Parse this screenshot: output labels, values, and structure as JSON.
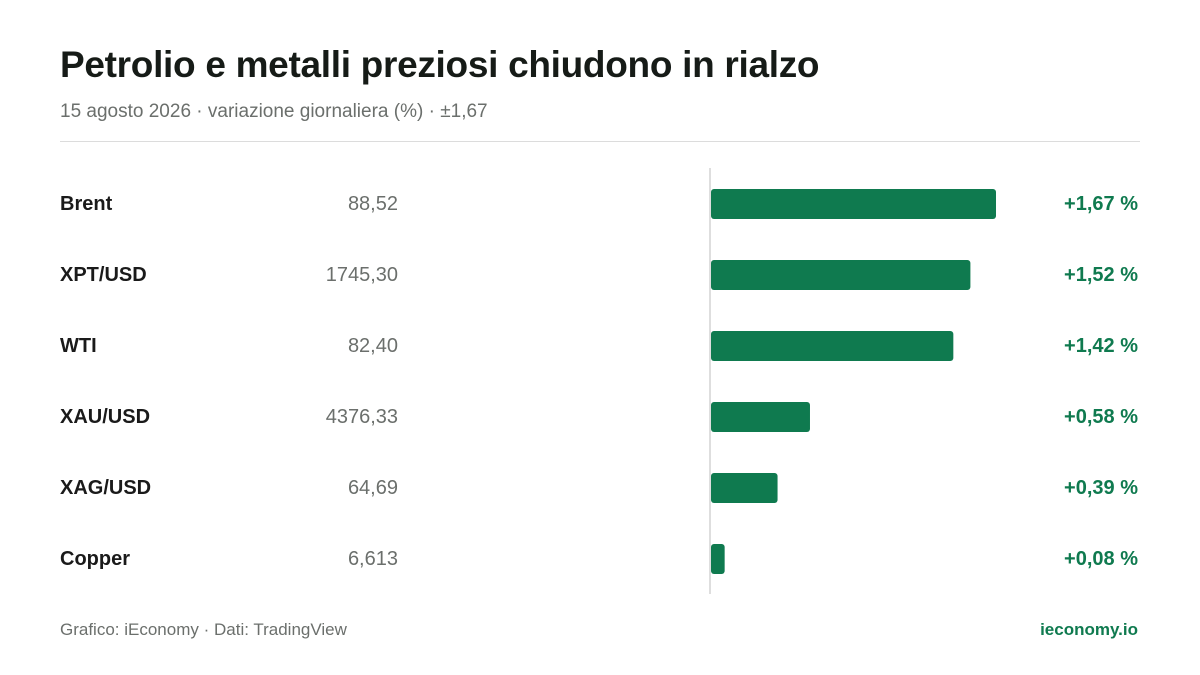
{
  "header": {
    "title": "Petrolio e metalli preziosi chiudono in rialzo",
    "subtitle": "15 agosto 2026 · variazione giornaliera (%) · ±1,67"
  },
  "footer": {
    "source": "Grafico: iEconomy · Dati: TradingView",
    "brand": "ieconomy.io"
  },
  "colors": {
    "bar": "#0f7a4f",
    "positive_text": "#0f7a4f",
    "axis": "#dedede"
  },
  "chart_data": {
    "type": "bar",
    "orientation": "horizontal",
    "categories": [
      "Brent",
      "XPT/USD",
      "WTI",
      "XAU/USD",
      "XAG/USD",
      "Copper"
    ],
    "prices": [
      "88,52",
      "1745,30",
      "82,40",
      "4376,33",
      "64,69",
      "6,613"
    ],
    "values": [
      1.67,
      1.52,
      1.42,
      0.58,
      0.39,
      0.08
    ],
    "value_labels": [
      "+1,67 %",
      "+1,52 %",
      "+1,42 %",
      "+0,58 %",
      "+0,39 %",
      "+0,08 %"
    ],
    "xlim": [
      -1.67,
      1.67
    ],
    "grid": false,
    "legend": "none"
  }
}
